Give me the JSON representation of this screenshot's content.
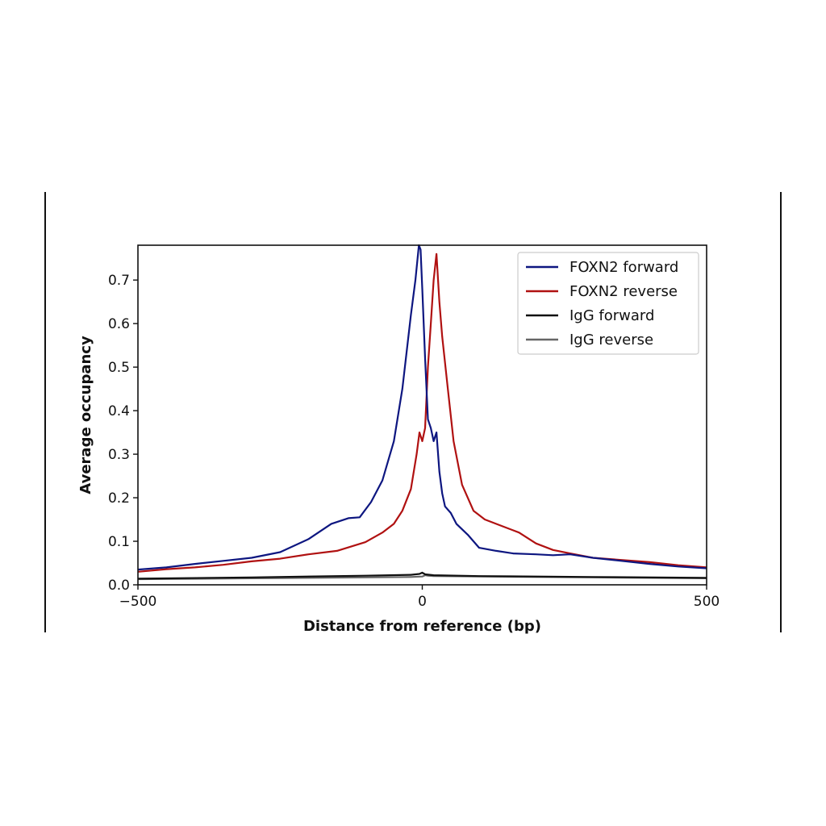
{
  "chart_data": {
    "type": "line",
    "title": "",
    "xlabel": "Distance from reference (bp)",
    "ylabel": "Average occupancy",
    "xlim": [
      -500,
      500
    ],
    "ylim": [
      0,
      0.78
    ],
    "xticks": [
      {
        "value": -500,
        "label": "−500"
      },
      {
        "value": 0,
        "label": "0"
      },
      {
        "value": 500,
        "label": "500"
      }
    ],
    "yticks": [
      {
        "value": 0.0,
        "label": "0.0"
      },
      {
        "value": 0.1,
        "label": "0.1"
      },
      {
        "value": 0.2,
        "label": "0.2"
      },
      {
        "value": 0.3,
        "label": "0.3"
      },
      {
        "value": 0.4,
        "label": "0.4"
      },
      {
        "value": 0.5,
        "label": "0.5"
      },
      {
        "value": 0.6,
        "label": "0.6"
      },
      {
        "value": 0.7,
        "label": "0.7"
      }
    ],
    "grid": false,
    "legend_position": "top-right",
    "series": [
      {
        "name": "FOXN2 forward",
        "color": "#0d1680",
        "x": [
          -500,
          -450,
          -400,
          -350,
          -300,
          -250,
          -200,
          -160,
          -130,
          -110,
          -90,
          -70,
          -50,
          -35,
          -20,
          -12,
          -6,
          -3,
          0,
          5,
          10,
          15,
          20,
          25,
          30,
          35,
          40,
          50,
          60,
          80,
          100,
          130,
          160,
          200,
          230,
          260,
          300,
          350,
          400,
          450,
          500
        ],
        "y": [
          0.035,
          0.04,
          0.048,
          0.055,
          0.062,
          0.075,
          0.105,
          0.14,
          0.153,
          0.155,
          0.19,
          0.24,
          0.33,
          0.45,
          0.62,
          0.7,
          0.78,
          0.77,
          0.68,
          0.52,
          0.38,
          0.36,
          0.33,
          0.35,
          0.26,
          0.21,
          0.18,
          0.165,
          0.14,
          0.115,
          0.085,
          0.078,
          0.072,
          0.07,
          0.068,
          0.07,
          0.062,
          0.055,
          0.048,
          0.042,
          0.038
        ]
      },
      {
        "name": "FOXN2 reverse",
        "color": "#b01111",
        "x": [
          -500,
          -450,
          -400,
          -350,
          -300,
          -250,
          -200,
          -150,
          -100,
          -70,
          -50,
          -35,
          -20,
          -10,
          -5,
          0,
          5,
          10,
          15,
          20,
          25,
          30,
          35,
          45,
          55,
          70,
          90,
          110,
          140,
          170,
          200,
          230,
          260,
          300,
          350,
          400,
          450,
          500
        ],
        "y": [
          0.03,
          0.036,
          0.04,
          0.046,
          0.054,
          0.06,
          0.07,
          0.078,
          0.098,
          0.12,
          0.14,
          0.17,
          0.22,
          0.3,
          0.35,
          0.33,
          0.36,
          0.5,
          0.6,
          0.7,
          0.76,
          0.65,
          0.57,
          0.45,
          0.33,
          0.23,
          0.17,
          0.15,
          0.135,
          0.12,
          0.095,
          0.08,
          0.072,
          0.062,
          0.057,
          0.052,
          0.045,
          0.04
        ]
      },
      {
        "name": "IgG forward",
        "color": "#111111",
        "x": [
          -500,
          -300,
          -100,
          -20,
          -5,
          0,
          5,
          20,
          100,
          300,
          500
        ],
        "y": [
          0.014,
          0.017,
          0.021,
          0.023,
          0.025,
          0.028,
          0.024,
          0.022,
          0.02,
          0.018,
          0.016
        ]
      },
      {
        "name": "IgG reverse",
        "color": "#666666",
        "x": [
          -500,
          -300,
          -100,
          -20,
          0,
          5,
          10,
          20,
          100,
          300,
          500
        ],
        "y": [
          0.013,
          0.015,
          0.017,
          0.018,
          0.019,
          0.022,
          0.021,
          0.02,
          0.019,
          0.017,
          0.015
        ]
      }
    ]
  }
}
